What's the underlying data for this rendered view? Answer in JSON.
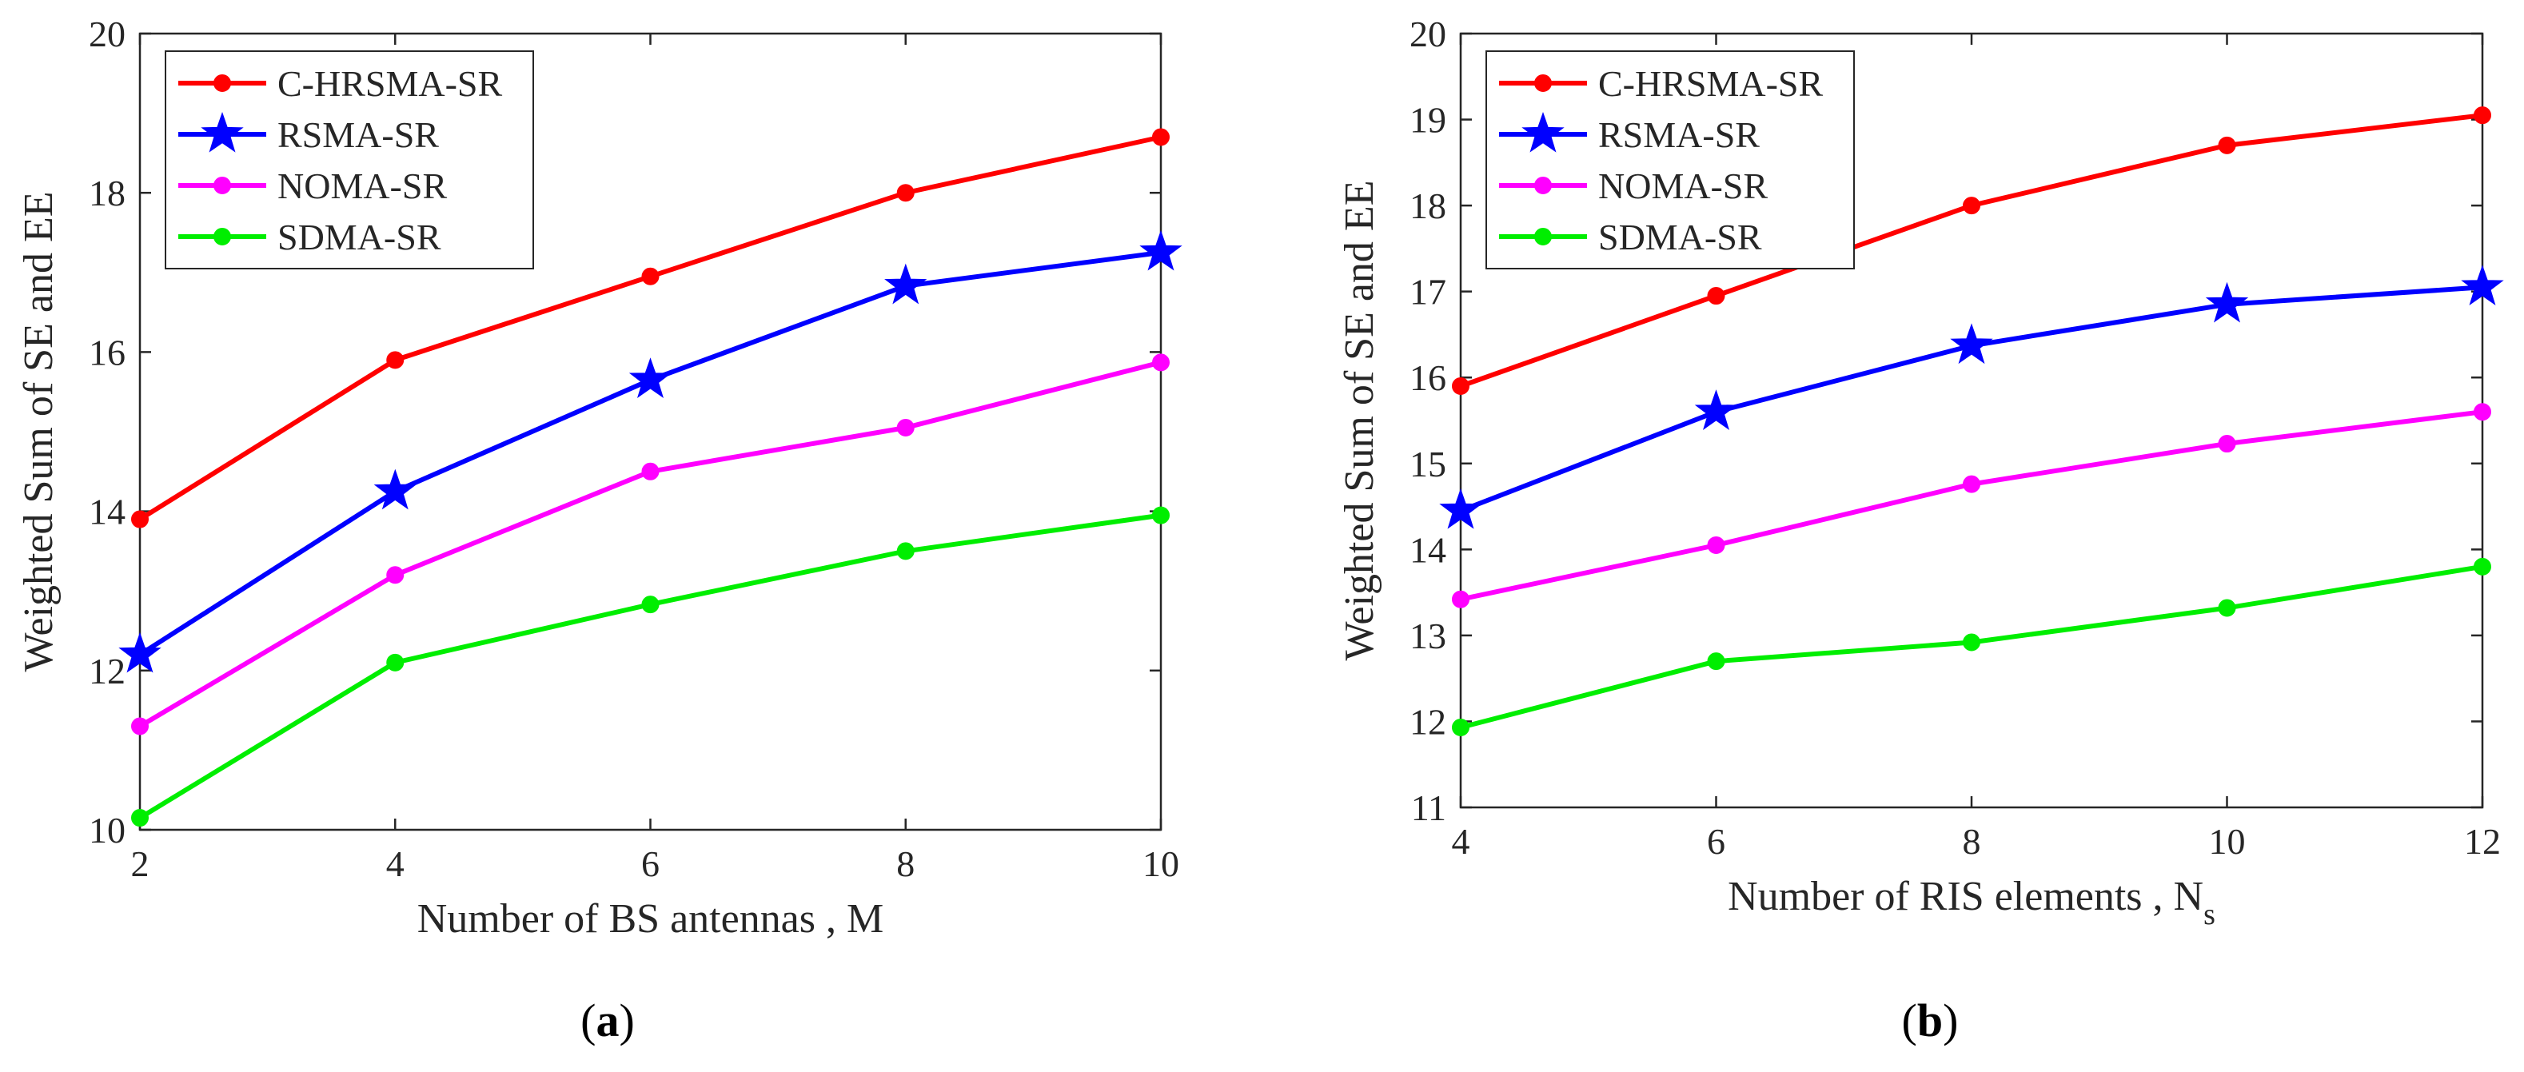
{
  "chart_data": [
    {
      "type": "line",
      "panel_label": "a",
      "title": "",
      "xlabel": "Number of BS antennas , M",
      "ylabel": "Weighted Sum of SE and EE",
      "xlim": [
        2,
        10
      ],
      "ylim": [
        10,
        20
      ],
      "xticks": [
        2,
        4,
        6,
        8,
        10
      ],
      "yticks": [
        10,
        12,
        14,
        16,
        18,
        20
      ],
      "grid": false,
      "legend_position": "top-left",
      "x": [
        2,
        4,
        6,
        8,
        10
      ],
      "series": [
        {
          "name": "C-HRSMA-SR",
          "color": "#ff0000",
          "marker": "circle",
          "values": [
            13.9,
            15.9,
            16.95,
            18.0,
            18.7
          ]
        },
        {
          "name": "RSMA-SR",
          "color": "#0000ff",
          "marker": "star",
          "values": [
            12.2,
            14.25,
            15.65,
            16.83,
            17.25
          ]
        },
        {
          "name": "NOMA-SR",
          "color": "#ff00ff",
          "marker": "circle",
          "values": [
            11.3,
            13.2,
            14.5,
            15.05,
            15.87
          ]
        },
        {
          "name": "SDMA-SR",
          "color": "#00ee00",
          "marker": "circle",
          "values": [
            10.15,
            12.1,
            12.83,
            13.5,
            13.95
          ]
        }
      ]
    },
    {
      "type": "line",
      "panel_label": "b",
      "title": "",
      "xlabel": "Number of RIS elements , N",
      "xlabel_subscript": "s",
      "ylabel": "Weighted Sum of SE and EE",
      "xlim": [
        4,
        12
      ],
      "ylim": [
        11,
        20
      ],
      "xticks": [
        4,
        6,
        8,
        10,
        12
      ],
      "yticks": [
        11,
        12,
        13,
        14,
        15,
        16,
        17,
        18,
        19,
        20
      ],
      "grid": false,
      "legend_position": "top-left",
      "x": [
        4,
        6,
        8,
        10,
        12
      ],
      "series": [
        {
          "name": "C-HRSMA-SR",
          "color": "#ff0000",
          "marker": "circle",
          "values": [
            15.9,
            16.95,
            18.0,
            18.7,
            19.05
          ]
        },
        {
          "name": "RSMA-SR",
          "color": "#0000ff",
          "marker": "star",
          "values": [
            14.45,
            15.6,
            16.37,
            16.85,
            17.05
          ]
        },
        {
          "name": "NOMA-SR",
          "color": "#ff00ff",
          "marker": "circle",
          "values": [
            13.42,
            14.05,
            14.76,
            15.23,
            15.6
          ]
        },
        {
          "name": "SDMA-SR",
          "color": "#00ee00",
          "marker": "circle",
          "values": [
            11.93,
            12.7,
            12.92,
            13.32,
            13.8
          ]
        }
      ]
    }
  ]
}
